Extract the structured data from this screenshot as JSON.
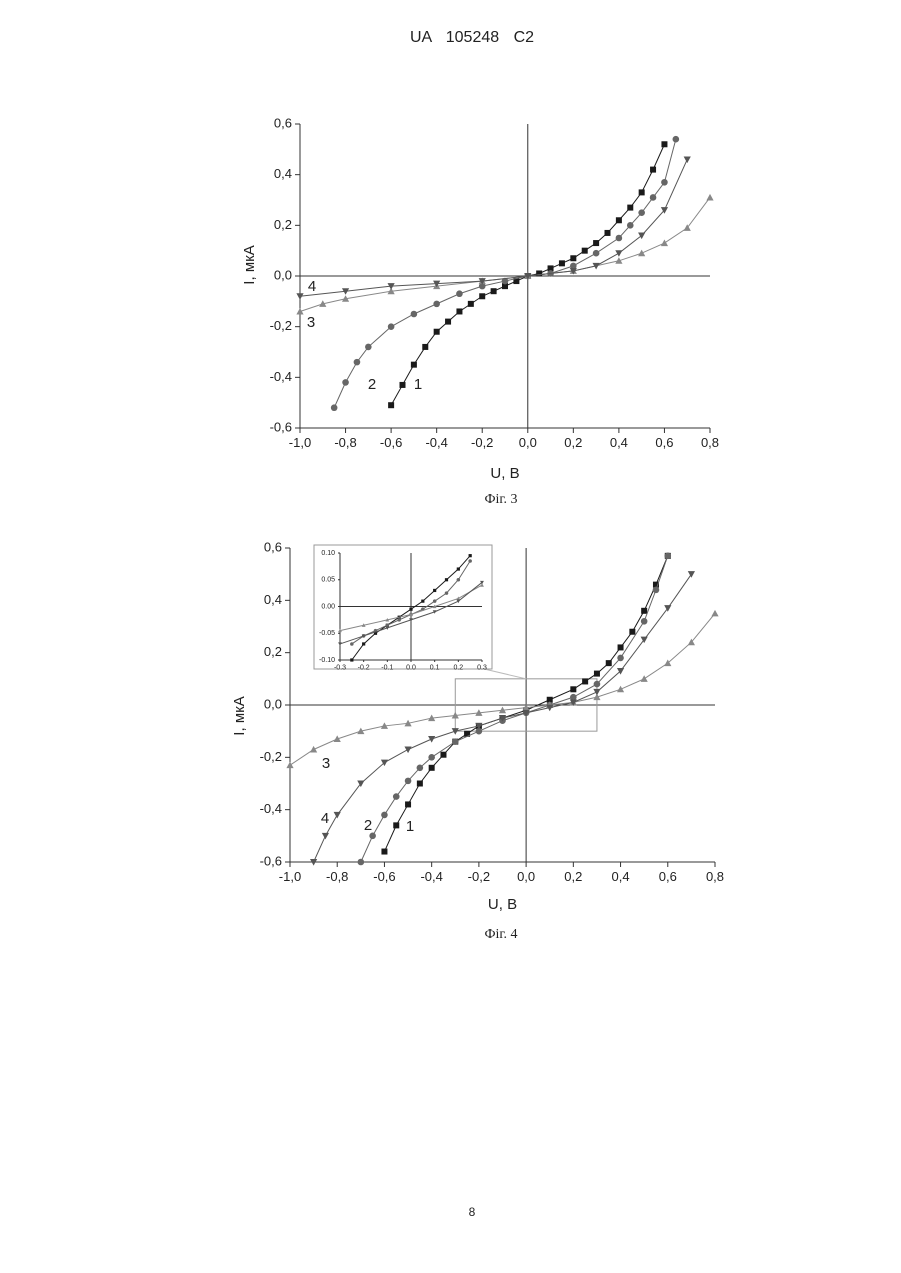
{
  "header": "UA 105248 C2",
  "page_number": "8",
  "chart_data": [
    {
      "type": "line",
      "caption": "Фіг. 3",
      "x_label": "U, B",
      "y_label": "I, мкА",
      "xlim": [
        -1.0,
        0.8
      ],
      "ylim": [
        -0.6,
        0.6
      ],
      "xticks": [
        {
          "value": -1.0,
          "label": "-1,0"
        },
        {
          "value": -0.8,
          "label": "-0,8"
        },
        {
          "value": -0.6,
          "label": "-0,6"
        },
        {
          "value": -0.4,
          "label": "-0,4"
        },
        {
          "value": -0.2,
          "label": "-0,2"
        },
        {
          "value": 0,
          "label": "0,0"
        },
        {
          "value": 0.2,
          "label": "0,2"
        },
        {
          "value": 0.4,
          "label": "0,4"
        },
        {
          "value": 0.6,
          "label": "0,6"
        },
        {
          "value": 0.8,
          "label": "0,8"
        }
      ],
      "yticks": [
        {
          "value": -0.6,
          "label": "-0,6"
        },
        {
          "value": -0.4,
          "label": "-0,4"
        },
        {
          "value": -0.2,
          "label": "-0,2"
        },
        {
          "value": 0,
          "label": "0,0"
        },
        {
          "value": 0.2,
          "label": "0,2"
        },
        {
          "value": 0.4,
          "label": "0,4"
        },
        {
          "value": 0.6,
          "label": "0,6"
        }
      ],
      "series": [
        {
          "name": "1",
          "color": "#1a1a1a",
          "marker": "square",
          "x": [
            -0.6,
            -0.55,
            -0.5,
            -0.45,
            -0.4,
            -0.35,
            -0.3,
            -0.25,
            -0.2,
            -0.15,
            -0.1,
            -0.05,
            0,
            0.05,
            0.1,
            0.15,
            0.2,
            0.25,
            0.3,
            0.35,
            0.4,
            0.45,
            0.5,
            0.55,
            0.6
          ],
          "values": [
            -0.51,
            -0.43,
            -0.35,
            -0.28,
            -0.22,
            -0.18,
            -0.14,
            -0.11,
            -0.08,
            -0.06,
            -0.04,
            -0.02,
            0,
            0.01,
            0.03,
            0.05,
            0.07,
            0.1,
            0.13,
            0.17,
            0.22,
            0.27,
            0.33,
            0.42,
            0.52
          ]
        },
        {
          "name": "2",
          "color": "#666666",
          "marker": "circle",
          "x": [
            -0.85,
            -0.8,
            -0.75,
            -0.7,
            -0.6,
            -0.5,
            -0.4,
            -0.3,
            -0.2,
            -0.1,
            0,
            0.1,
            0.2,
            0.3,
            0.4,
            0.45,
            0.5,
            0.55,
            0.6,
            0.65
          ],
          "values": [
            -0.52,
            -0.42,
            -0.34,
            -0.28,
            -0.2,
            -0.15,
            -0.11,
            -0.07,
            -0.04,
            -0.02,
            0,
            0.01,
            0.04,
            0.09,
            0.15,
            0.2,
            0.25,
            0.31,
            0.37,
            0.54
          ]
        },
        {
          "name": "3",
          "color": "#888888",
          "marker": "triangle-up",
          "x": [
            -1.0,
            -0.9,
            -0.8,
            -0.6,
            -0.4,
            -0.2,
            0,
            0.2,
            0.4,
            0.5,
            0.6,
            0.7,
            0.8
          ],
          "values": [
            -0.14,
            -0.11,
            -0.09,
            -0.06,
            -0.04,
            -0.02,
            0,
            0.02,
            0.06,
            0.09,
            0.13,
            0.19,
            0.31
          ]
        },
        {
          "name": "4",
          "color": "#555555",
          "marker": "triangle-down",
          "x": [
            -1.0,
            -0.8,
            -0.6,
            -0.4,
            -0.2,
            0,
            0.2,
            0.3,
            0.4,
            0.5,
            0.6,
            0.7
          ],
          "values": [
            -0.08,
            -0.06,
            -0.04,
            -0.03,
            -0.02,
            0,
            0.02,
            0.04,
            0.09,
            0.16,
            0.26,
            0.46
          ]
        }
      ]
    },
    {
      "type": "line",
      "caption": "Фіг. 4",
      "x_label": "U, B",
      "y_label": "I, мкА",
      "xlim": [
        -1.0,
        0.8
      ],
      "ylim": [
        -0.6,
        0.6
      ],
      "xticks": [
        {
          "value": -1.0,
          "label": "-1,0"
        },
        {
          "value": -0.8,
          "label": "-0,8"
        },
        {
          "value": -0.6,
          "label": "-0,6"
        },
        {
          "value": -0.4,
          "label": "-0,4"
        },
        {
          "value": -0.2,
          "label": "-0,2"
        },
        {
          "value": 0,
          "label": "0,0"
        },
        {
          "value": 0.2,
          "label": "0,2"
        },
        {
          "value": 0.4,
          "label": "0,4"
        },
        {
          "value": 0.6,
          "label": "0,6"
        },
        {
          "value": 0.8,
          "label": "0,8"
        }
      ],
      "yticks": [
        {
          "value": -0.6,
          "label": "-0,6"
        },
        {
          "value": -0.4,
          "label": "-0,4"
        },
        {
          "value": -0.2,
          "label": "-0,2"
        },
        {
          "value": 0,
          "label": "0,0"
        },
        {
          "value": 0.2,
          "label": "0,2"
        },
        {
          "value": 0.4,
          "label": "0,4"
        },
        {
          "value": 0.6,
          "label": "0,6"
        }
      ],
      "series": [
        {
          "name": "1",
          "color": "#1a1a1a",
          "marker": "square",
          "x": [
            -0.6,
            -0.55,
            -0.5,
            -0.45,
            -0.4,
            -0.35,
            -0.3,
            -0.25,
            -0.2,
            -0.1,
            0,
            0.1,
            0.2,
            0.25,
            0.3,
            0.35,
            0.4,
            0.45,
            0.5,
            0.55,
            0.6
          ],
          "values": [
            -0.56,
            -0.46,
            -0.38,
            -0.3,
            -0.24,
            -0.19,
            -0.14,
            -0.11,
            -0.08,
            -0.05,
            -0.02,
            0.02,
            0.06,
            0.09,
            0.12,
            0.16,
            0.22,
            0.28,
            0.36,
            0.46,
            0.57
          ]
        },
        {
          "name": "2",
          "color": "#666666",
          "marker": "circle",
          "x": [
            -0.7,
            -0.65,
            -0.6,
            -0.55,
            -0.5,
            -0.45,
            -0.4,
            -0.3,
            -0.2,
            -0.1,
            0,
            0.1,
            0.2,
            0.3,
            0.4,
            0.5,
            0.55,
            0.6
          ],
          "values": [
            -0.6,
            -0.5,
            -0.42,
            -0.35,
            -0.29,
            -0.24,
            -0.2,
            -0.14,
            -0.1,
            -0.06,
            -0.03,
            0.0,
            0.03,
            0.08,
            0.18,
            0.32,
            0.44,
            0.57
          ]
        },
        {
          "name": "3",
          "color": "#888888",
          "marker": "triangle-up",
          "x": [
            -1.0,
            -0.9,
            -0.8,
            -0.7,
            -0.6,
            -0.5,
            -0.4,
            -0.3,
            -0.2,
            -0.1,
            0,
            0.1,
            0.2,
            0.3,
            0.4,
            0.5,
            0.6,
            0.7,
            0.8
          ],
          "values": [
            -0.23,
            -0.17,
            -0.13,
            -0.1,
            -0.08,
            -0.07,
            -0.05,
            -0.04,
            -0.03,
            -0.02,
            -0.01,
            0.0,
            0.01,
            0.03,
            0.06,
            0.1,
            0.16,
            0.24,
            0.35
          ]
        },
        {
          "name": "4",
          "color": "#555555",
          "marker": "triangle-down",
          "x": [
            -0.9,
            -0.85,
            -0.8,
            -0.7,
            -0.6,
            -0.5,
            -0.4,
            -0.3,
            -0.2,
            -0.1,
            0,
            0.1,
            0.2,
            0.3,
            0.4,
            0.5,
            0.6,
            0.7
          ],
          "values": [
            -0.6,
            -0.5,
            -0.42,
            -0.3,
            -0.22,
            -0.17,
            -0.13,
            -0.1,
            -0.08,
            -0.05,
            -0.03,
            -0.01,
            0.01,
            0.05,
            0.13,
            0.25,
            0.37,
            0.5
          ]
        }
      ]
    },
    {
      "type": "line",
      "xlim": [
        -0.3,
        0.3
      ],
      "ylim": [
        -0.1,
        0.1
      ],
      "xticks": [
        -0.3,
        -0.2,
        -0.1,
        {
          "value": 0,
          "label": "0.0"
        },
        0.1,
        0.2,
        0.3
      ],
      "yticks": [
        {
          "value": -0.1,
          "label": "-0.10"
        },
        -0.05,
        {
          "value": 0,
          "label": "0.00"
        },
        0.05,
        {
          "value": 0.1,
          "label": "0.10"
        }
      ],
      "series": [
        {
          "color": "#1a1a1a",
          "marker": "square",
          "x": [
            -0.25,
            -0.2,
            -0.15,
            -0.1,
            -0.05,
            0,
            0.05,
            0.1,
            0.15,
            0.2,
            0.25
          ],
          "values": [
            -0.1,
            -0.07,
            -0.05,
            -0.035,
            -0.02,
            -0.005,
            0.01,
            0.03,
            0.05,
            0.07,
            0.095
          ]
        },
        {
          "color": "#666666",
          "marker": "circle",
          "x": [
            -0.25,
            -0.2,
            -0.15,
            -0.1,
            -0.05,
            0,
            0.05,
            0.1,
            0.15,
            0.2,
            0.25
          ],
          "values": [
            -0.07,
            -0.055,
            -0.045,
            -0.035,
            -0.025,
            -0.015,
            -0.005,
            0.01,
            0.025,
            0.05,
            0.085
          ]
        },
        {
          "color": "#888888",
          "marker": "triangle-up",
          "x": [
            -0.3,
            -0.2,
            -0.1,
            0,
            0.1,
            0.2,
            0.3
          ],
          "values": [
            -0.045,
            -0.035,
            -0.025,
            -0.015,
            0.0,
            0.015,
            0.04
          ]
        },
        {
          "color": "#555555",
          "marker": "triangle-down",
          "x": [
            -0.3,
            -0.2,
            -0.1,
            0,
            0.1,
            0.2,
            0.3
          ],
          "values": [
            -0.07,
            -0.055,
            -0.04,
            -0.025,
            -0.01,
            0.01,
            0.045
          ]
        }
      ]
    }
  ]
}
